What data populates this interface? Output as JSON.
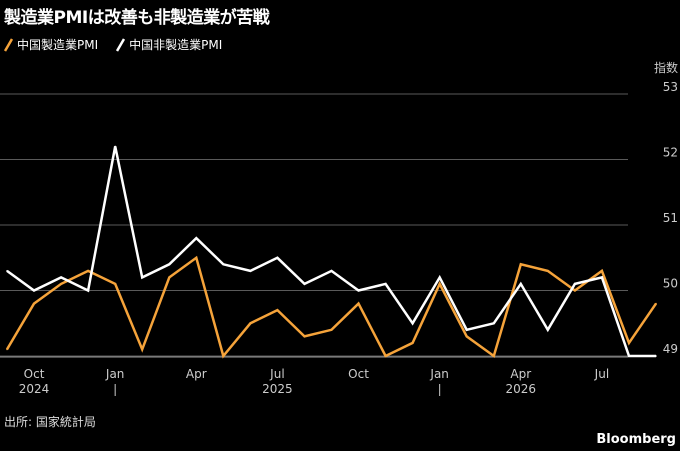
{
  "title": "製造業PMIは改善も非製造業が苦戦",
  "source": "出所: 国家統計局",
  "brand": "Bloomberg",
  "colors": {
    "manufacturing": "#f5a33a",
    "non_manufacturing": "#ffffff",
    "grid": "#5a5a5a",
    "axis_text": "#cccccc",
    "background": "#000000"
  },
  "chart_data": {
    "type": "line",
    "ylabel": "指数",
    "ylim": [
      49,
      53
    ],
    "yticks": [
      49,
      50,
      51,
      52,
      53
    ],
    "x": [
      "2024-09",
      "2024-10",
      "2024-11",
      "2024-12",
      "2025-01",
      "2025-02",
      "2025-03",
      "2025-04",
      "2025-05",
      "2025-06",
      "2025-07",
      "2025-08",
      "2025-09",
      "2025-10",
      "2025-11",
      "2025-12",
      "2026-01",
      "2026-02",
      "2026-03",
      "2026-04",
      "2026-05",
      "2026-06",
      "2026-07",
      "2026-08",
      "2026-09"
    ],
    "month_ticks": [
      {
        "x": "2024-10",
        "label": "Oct"
      },
      {
        "x": "2025-01",
        "label": "Jan"
      },
      {
        "x": "2025-04",
        "label": "Apr"
      },
      {
        "x": "2025-07",
        "label": "Jul"
      },
      {
        "x": "2025-10",
        "label": "Oct"
      },
      {
        "x": "2026-01",
        "label": "Jan"
      },
      {
        "x": "2026-04",
        "label": "Apr"
      },
      {
        "x": "2026-07",
        "label": "Jul"
      }
    ],
    "year_labels": [
      {
        "x": "2024-10",
        "label": "2024"
      },
      {
        "x": "2025-07",
        "label": "2025"
      },
      {
        "x": "2026-04",
        "label": "2026"
      }
    ],
    "year_separators": [
      "2025-01",
      "2026-01"
    ],
    "series": [
      {
        "name": "中国製造業PMI",
        "color": "#f5a33a",
        "values": [
          49.1,
          49.8,
          50.1,
          50.3,
          50.1,
          49.1,
          50.2,
          50.5,
          49.0,
          49.5,
          49.7,
          49.3,
          49.4,
          49.8,
          49.0,
          49.2,
          50.1,
          49.3,
          49.0,
          50.4,
          50.3,
          50.0,
          50.3,
          49.2,
          49.8
        ]
      },
      {
        "name": "中国非製造業PMI",
        "color": "#ffffff",
        "values": [
          50.3,
          50.0,
          50.2,
          50.0,
          52.2,
          50.2,
          50.4,
          50.8,
          50.4,
          50.3,
          50.5,
          50.1,
          50.3,
          50.0,
          50.1,
          49.5,
          50.2,
          49.4,
          49.5,
          50.1,
          49.4,
          50.1,
          50.2,
          49.0,
          49.0
        ]
      }
    ],
    "grid": true,
    "legend": "top-left"
  }
}
